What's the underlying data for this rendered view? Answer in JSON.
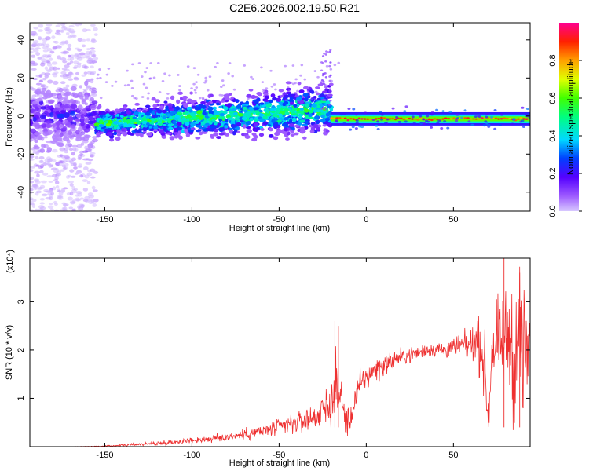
{
  "title": "C2E6.2026.002.19.50.R21",
  "chart_data": [
    {
      "type": "heatmap",
      "xlabel": "Height of straight line (km)",
      "ylabel": "Frequency (Hz)",
      "xlim": [
        -193,
        94
      ],
      "ylim": [
        -50,
        49
      ],
      "xticks": [
        -150,
        -100,
        -50,
        0,
        50
      ],
      "yticks": [
        -40,
        -20,
        0,
        20,
        40
      ],
      "colorbar": {
        "label": "Normalized spectral amplitude",
        "range": [
          0,
          1
        ],
        "ticks": [
          0.0,
          0.2,
          0.4,
          0.6,
          0.8
        ]
      },
      "features": {
        "noisy_region_x": [
          -193,
          -155
        ],
        "ridge_start_x": -155,
        "ridge_break_x": -20,
        "strong_line_x": [
          -20,
          94
        ],
        "strong_line_frequency": -1.5
      }
    },
    {
      "type": "line",
      "xlabel": "Height of straight line (km)",
      "ylabel": "SNR (10 * v/v)",
      "yscale_label": "(x10⁴)",
      "xlim": [
        -193,
        94
      ],
      "ylim": [
        0,
        3.9
      ],
      "xticks": [
        -150,
        -100,
        -50,
        0,
        50
      ],
      "yticks": [
        1,
        2,
        3
      ],
      "color": "#ee3030",
      "x": [
        -193,
        -170,
        -150,
        -140,
        -130,
        -120,
        -110,
        -100,
        -90,
        -80,
        -70,
        -60,
        -50,
        -40,
        -30,
        -25,
        -20,
        -17,
        -15,
        -12,
        -10,
        -7,
        -5,
        -3,
        0,
        5,
        10,
        15,
        20,
        25,
        30,
        35,
        40,
        45,
        50,
        55,
        60,
        63,
        66,
        68,
        70,
        72,
        75,
        78,
        80,
        83,
        85,
        88,
        90,
        94
      ],
      "y": [
        0.0,
        0.0,
        0.01,
        0.03,
        0.05,
        0.07,
        0.1,
        0.13,
        0.16,
        0.2,
        0.26,
        0.32,
        0.4,
        0.5,
        0.6,
        0.75,
        0.9,
        1.25,
        1.05,
        0.6,
        0.45,
        0.9,
        1.1,
        1.3,
        1.45,
        1.6,
        1.7,
        1.78,
        1.85,
        1.9,
        1.95,
        2.0,
        2.02,
        2.0,
        2.05,
        2.1,
        2.1,
        2.2,
        2.05,
        1.6,
        0.5,
        2.0,
        2.15,
        2.05,
        2.2,
        2.3,
        1.7,
        2.5,
        1.8,
        2.0
      ],
      "noise_amplitude": [
        0.0,
        0.0,
        0.01,
        0.02,
        0.03,
        0.04,
        0.05,
        0.06,
        0.08,
        0.1,
        0.12,
        0.15,
        0.18,
        0.22,
        0.28,
        0.32,
        0.45,
        0.7,
        0.6,
        0.35,
        0.3,
        0.35,
        0.32,
        0.3,
        0.28,
        0.25,
        0.22,
        0.2,
        0.18,
        0.16,
        0.15,
        0.15,
        0.16,
        0.18,
        0.2,
        0.22,
        0.3,
        0.45,
        0.6,
        0.6,
        0.5,
        0.7,
        0.8,
        0.9,
        1.0,
        1.2,
        1.3,
        1.4,
        1.4,
        1.2
      ],
      "peaks": [
        {
          "x": -18,
          "y": 2.6
        },
        {
          "x": -16,
          "y": 2.5
        },
        {
          "x": 79,
          "y": 3.9
        },
        {
          "x": 88,
          "y": 3.6
        }
      ]
    }
  ]
}
